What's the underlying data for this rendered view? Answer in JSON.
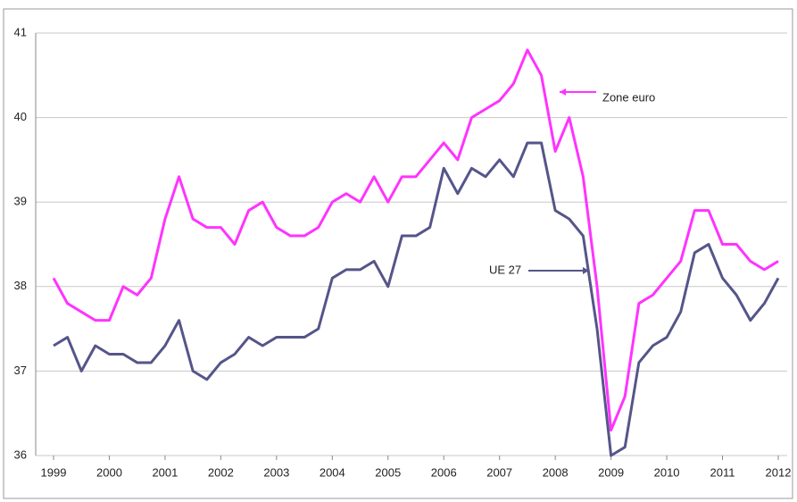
{
  "chart_data": {
    "type": "line",
    "x": [
      1999,
      1999.25,
      1999.5,
      1999.75,
      2000,
      2000.25,
      2000.5,
      2000.75,
      2001,
      2001.25,
      2001.5,
      2001.75,
      2002,
      2002.25,
      2002.5,
      2002.75,
      2003,
      2003.25,
      2003.5,
      2003.75,
      2004,
      2004.25,
      2004.5,
      2004.75,
      2005,
      2005.25,
      2005.5,
      2005.75,
      2006,
      2006.25,
      2006.5,
      2006.75,
      2007,
      2007.25,
      2007.5,
      2007.75,
      2008,
      2008.25,
      2008.5,
      2008.75,
      2009,
      2009.25,
      2009.5,
      2009.75,
      2010,
      2010.25,
      2010.5,
      2010.75,
      2011,
      2011.25,
      2011.5,
      2011.75,
      2012
    ],
    "series": [
      {
        "name": "Zone euro",
        "color": "#ff33ff",
        "values": [
          38.1,
          37.8,
          37.7,
          37.6,
          37.6,
          38.0,
          37.9,
          38.1,
          38.8,
          39.3,
          38.8,
          38.7,
          38.7,
          38.5,
          38.9,
          39.0,
          38.7,
          38.6,
          38.6,
          38.7,
          39.0,
          39.1,
          39.0,
          39.3,
          39.0,
          39.3,
          39.3,
          39.5,
          39.7,
          39.5,
          40.0,
          40.1,
          40.2,
          40.4,
          40.8,
          40.5,
          39.6,
          40.0,
          39.3,
          38.0,
          36.3,
          36.7,
          37.8,
          37.9,
          38.1,
          38.3,
          38.9,
          38.9,
          38.5,
          38.5,
          38.3,
          38.2,
          38.3
        ]
      },
      {
        "name": "UE 27",
        "color": "#55558a",
        "values": [
          37.3,
          37.4,
          37.0,
          37.3,
          37.2,
          37.2,
          37.1,
          37.1,
          37.3,
          37.6,
          37.0,
          36.9,
          37.1,
          37.2,
          37.4,
          37.3,
          37.4,
          37.4,
          37.4,
          37.5,
          38.1,
          38.2,
          38.2,
          38.3,
          38.0,
          38.6,
          38.6,
          38.7,
          39.4,
          39.1,
          39.4,
          39.3,
          39.5,
          39.3,
          39.7,
          39.7,
          38.9,
          38.8,
          38.6,
          37.5,
          36.0,
          36.1,
          37.1,
          37.3,
          37.4,
          37.7,
          38.4,
          38.5,
          38.1,
          37.9,
          37.6,
          37.8,
          38.1
        ]
      }
    ],
    "xlim": [
      1999,
      2012
    ],
    "xticks": [
      1999,
      2000,
      2001,
      2002,
      2003,
      2004,
      2005,
      2006,
      2007,
      2008,
      2009,
      2010,
      2011,
      2012
    ],
    "ylim": [
      36,
      41
    ],
    "yticks": [
      36,
      37,
      38,
      39,
      40,
      41
    ],
    "grid": true
  }
}
